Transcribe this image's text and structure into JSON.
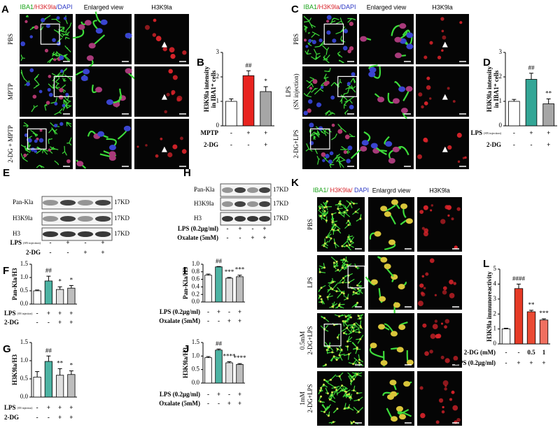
{
  "figure": {
    "panel_a": {
      "label": "A",
      "stain": [
        "IBA1",
        "/H3K9la",
        "/DAPI"
      ],
      "columns": [
        "Enlarged view",
        "H3K9la"
      ],
      "rows": [
        [
          "PBS"
        ],
        [
          "MPTP"
        ],
        [
          "2-DG + MPTP"
        ]
      ]
    },
    "panel_c": {
      "label": "C",
      "stain": [
        "IBA1",
        "/H3K9la",
        "/DAPI"
      ],
      "columns": [
        "Enlarged view",
        "H3K9la"
      ],
      "rows": [
        [
          "PBS"
        ],
        [
          "LPS",
          "(SN injection)"
        ],
        [
          "2-DG+LPS"
        ]
      ]
    },
    "panel_e": {
      "label": "E",
      "bands": [
        "Pan-Kla",
        "H3K9la",
        "H3"
      ],
      "size": "17KD",
      "conditions": [
        {
          "label": "LPS",
          "note": "(SN injection)",
          "signs": [
            "-",
            "+",
            "-",
            "+"
          ]
        },
        {
          "label": "2-DG",
          "signs": [
            "-",
            "-",
            "+",
            "+"
          ]
        }
      ]
    },
    "panel_h": {
      "label": "H",
      "bands": [
        "Pan-Kla",
        "H3K9la",
        "H3"
      ],
      "size": "17KD",
      "conditions": [
        {
          "label": "LPS (0.2µg/ml)",
          "signs": [
            "-",
            "+",
            "-",
            "+"
          ]
        },
        {
          "label": "Oxalate (5mM)",
          "signs": [
            "-",
            "-",
            "+",
            "+"
          ]
        }
      ]
    },
    "panel_k": {
      "label": "K",
      "stain": [
        "IBA1/ ",
        "H3K9la/ ",
        "DAPI"
      ],
      "columns": [
        "Enlargrd view",
        "H3K9la"
      ],
      "rows": [
        [
          "PBS"
        ],
        [
          "LPS"
        ],
        [
          "0.5mM",
          "2-DG+LPS"
        ],
        [
          "1mM",
          "2-DG+LPS"
        ]
      ]
    }
  },
  "chart_data": [
    {
      "type": "bar",
      "label": "B",
      "ylabel": [
        "H3K9la intensity",
        "in IBA1⁺ cells"
      ],
      "values": [
        1.0,
        2.05,
        1.4
      ],
      "errors": [
        0.1,
        0.2,
        0.2
      ],
      "colors": [
        "#ffffff",
        "#e8231f",
        "#a6a6a6"
      ],
      "annotations": [
        null,
        "##",
        "*"
      ],
      "ylim": [
        0,
        3
      ],
      "yticks": [
        0,
        1,
        2,
        3
      ],
      "conditions": [
        {
          "label": "MPTP",
          "signs": [
            "-",
            "+",
            "+"
          ]
        },
        {
          "label": "2-DG",
          "signs": [
            "-",
            "-",
            "+"
          ]
        }
      ]
    },
    {
      "type": "bar",
      "label": "D",
      "ylabel": [
        "H3K9la intensity",
        "in IBA1⁺ cells"
      ],
      "values": [
        1.0,
        1.9,
        0.9
      ],
      "errors": [
        0.08,
        0.25,
        0.2
      ],
      "colors": [
        "#ffffff",
        "#33a696",
        "#a6a6a6"
      ],
      "annotations": [
        null,
        "##",
        "**"
      ],
      "ylim": [
        0,
        3
      ],
      "yticks": [
        0,
        1,
        2,
        3
      ],
      "conditions": [
        {
          "label": "LPS",
          "note": "(SN injection)",
          "signs": [
            "-",
            "+",
            "+"
          ]
        },
        {
          "label": "2-DG",
          "signs": [
            "-",
            "-",
            "+"
          ]
        }
      ]
    },
    {
      "type": "bar",
      "label": "F",
      "ylabel": [
        "Pan-Kla/H3"
      ],
      "values": [
        0.5,
        0.87,
        0.55,
        0.6
      ],
      "errors": [
        0.03,
        0.18,
        0.1,
        0.1
      ],
      "colors": [
        "#ffffff",
        "#4db3a3",
        "#e0e0e0",
        "#bdbdbd"
      ],
      "annotations": [
        null,
        "##",
        "*",
        "*"
      ],
      "ylim": [
        0,
        1.5
      ],
      "yticks": [
        {
          "value": 0,
          "label": "0.0"
        },
        {
          "value": 0.5,
          "label": "0.5"
        },
        {
          "value": 1,
          "label": "1.0"
        },
        {
          "value": 1.5,
          "label": "1.5"
        }
      ],
      "conditions": [
        {
          "label": "LPS",
          "note": "(SN injection)",
          "signs": [
            "-",
            "+",
            "+",
            "+"
          ]
        },
        {
          "label": "2-DG",
          "signs": [
            "-",
            "-",
            "+",
            "+"
          ]
        }
      ]
    },
    {
      "type": "bar",
      "label": "G",
      "ylabel": [
        "H3K9la/H3"
      ],
      "values": [
        0.55,
        0.98,
        0.6,
        0.62
      ],
      "errors": [
        0.15,
        0.15,
        0.18,
        0.1
      ],
      "colors": [
        "#ffffff",
        "#4db3a3",
        "#e0e0e0",
        "#bdbdbd"
      ],
      "annotations": [
        null,
        "##",
        "**",
        "*"
      ],
      "ylim": [
        0,
        1.5
      ],
      "yticks": [
        {
          "value": 0,
          "label": "0.0"
        },
        {
          "value": 0.5,
          "label": "0.5"
        },
        {
          "value": 1,
          "label": "1.0"
        },
        {
          "value": 1.5,
          "label": "1.5"
        }
      ],
      "conditions": [
        {
          "label": "LPS",
          "note": "(SN injection)",
          "signs": [
            "-",
            "+",
            "+",
            "+"
          ]
        },
        {
          "label": "2-DG",
          "signs": [
            "-",
            "-",
            "+",
            "+"
          ]
        }
      ]
    },
    {
      "type": "bar",
      "label": "I",
      "ylabel": [
        "Pan-Kla/H3"
      ],
      "values": [
        0.71,
        0.93,
        0.63,
        0.67
      ],
      "errors": [
        0.03,
        0.01,
        0.02,
        0.04
      ],
      "colors": [
        "#ffffff",
        "#4db3a3",
        "#e0e0e0",
        "#bdbdbd"
      ],
      "annotations": [
        null,
        "##",
        "***",
        "***"
      ],
      "ylim": [
        0,
        1
      ],
      "yticks": [
        {
          "value": 0,
          "label": "0.0"
        },
        {
          "value": 0.2,
          "label": "0.2"
        },
        {
          "value": 0.4,
          "label": "0.4"
        },
        {
          "value": 0.6,
          "label": "0.6"
        },
        {
          "value": 0.8,
          "label": "0.8"
        },
        {
          "value": 1,
          "label": "1.0"
        }
      ],
      "conditions": [
        {
          "label": "LPS (0.2µg/ml)",
          "signs": [
            "-",
            "+",
            "-",
            "+"
          ]
        },
        {
          "label": "Oxalate (5mM)",
          "signs": [
            "-",
            "-",
            "+",
            "+"
          ]
        }
      ]
    },
    {
      "type": "bar",
      "label": "J",
      "ylabel": [
        "H3K9la/H3"
      ],
      "values": [
        0.94,
        1.22,
        0.75,
        0.69
      ],
      "errors": [
        0.04,
        0.04,
        0.04,
        0.03
      ],
      "colors": [
        "#ffffff",
        "#4db3a3",
        "#e0e0e0",
        "#bdbdbd"
      ],
      "annotations": [
        null,
        "##",
        "****",
        "****"
      ],
      "ylim": [
        0,
        1.5
      ],
      "yticks": [
        {
          "value": 0,
          "label": "0.0"
        },
        {
          "value": 0.5,
          "label": "0.5"
        },
        {
          "value": 1,
          "label": "1.0"
        },
        {
          "value": 1.5,
          "label": "1.5"
        }
      ],
      "conditions": [
        {
          "label": "LPS (0.2µg/ml)",
          "signs": [
            "-",
            "+",
            "-",
            "+"
          ]
        },
        {
          "label": "Oxalate (5mM)",
          "signs": [
            "-",
            "-",
            "+",
            "+"
          ]
        }
      ]
    },
    {
      "type": "bar",
      "label": "L",
      "ylabel": [
        "H3K9la immunoreactivity"
      ],
      "values": [
        1.0,
        3.7,
        2.15,
        1.6
      ],
      "errors": [
        0.05,
        0.3,
        0.1,
        0.08
      ],
      "colors": [
        "#ffffff",
        "#e63a26",
        "#ea4a33",
        "#f07060"
      ],
      "annotations": [
        null,
        "####",
        "**",
        "***"
      ],
      "ylim": [
        0,
        5
      ],
      "yticks": [
        0,
        1,
        2,
        3,
        4,
        5
      ],
      "conditions": [
        {
          "label": "2-DG (mM)",
          "signs": [
            "-",
            "-",
            "0.5",
            "1"
          ]
        },
        {
          "label": "LPS (0.2µg/ml)",
          "signs": [
            "-",
            "+",
            "+",
            "+"
          ]
        }
      ]
    }
  ]
}
